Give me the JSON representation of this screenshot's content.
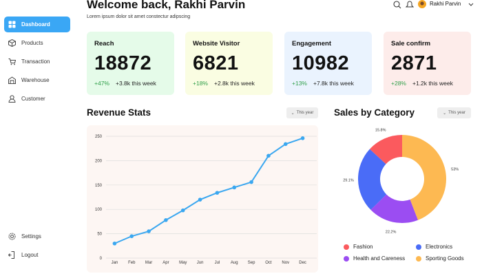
{
  "sidebar": {
    "nav": [
      "Dashboard",
      "Products",
      "Transaction",
      "Warehouse",
      "Customer"
    ],
    "footer_nav": [
      "Settings",
      "Logout"
    ]
  },
  "header": {
    "title": "Welcome back, Rakhi Parvin",
    "subtitle": "Lorem ipsum dolor sit amet constectur adipscing",
    "user": "Rakhi Parvin"
  },
  "cards": [
    {
      "title": "Reach",
      "value": 18872,
      "change": "+47%",
      "note": "+3.8k this week",
      "color": "#e5fbe9"
    },
    {
      "title": "Website Visitor",
      "value": 6821,
      "change": "+18%",
      "note": "+2.8k this week",
      "color": "#fafde2"
    },
    {
      "title": "Engagement",
      "value": 10982,
      "change": "+13%",
      "note": "+7.8k this week",
      "color": "#eaf3fe"
    },
    {
      "title": "Sale confirm",
      "value": 2871,
      "change": "+28%",
      "note": "+1.2k this week",
      "color": "#fdecea"
    }
  ],
  "revenue": {
    "title": "Revenue Stats",
    "filter": "This year",
    "chart_data": {
      "type": "line",
      "categories": [
        "Jan",
        "Feb",
        "Mar",
        "Apr",
        "May",
        "Jun",
        "Jul",
        "Aug",
        "Sep",
        "Oct",
        "Nov",
        "Dec"
      ],
      "values": [
        30,
        45,
        55,
        78,
        98,
        120,
        134,
        145,
        156,
        210,
        234,
        246
      ],
      "color": "#3aa7f0",
      "ylim": [
        0,
        250
      ],
      "yticks": [
        0,
        50,
        100,
        150,
        200,
        250
      ],
      "grid": true
    }
  },
  "sales": {
    "title": "Sales by Category",
    "filter": "This year",
    "chart_data": {
      "type": "pie",
      "donut": true,
      "categories": [
        "Fashion",
        "Electronics",
        "Health and Careness",
        "Sporting Goods"
      ],
      "values": [
        15.8,
        29.1,
        22.2,
        53
      ],
      "value_labels": [
        "15.8%",
        "29.1%",
        "22.2%",
        "53%"
      ],
      "colors": [
        "#fb5a5e",
        "#4a6cf7",
        "#9b4df2",
        "#fdb952"
      ]
    }
  }
}
